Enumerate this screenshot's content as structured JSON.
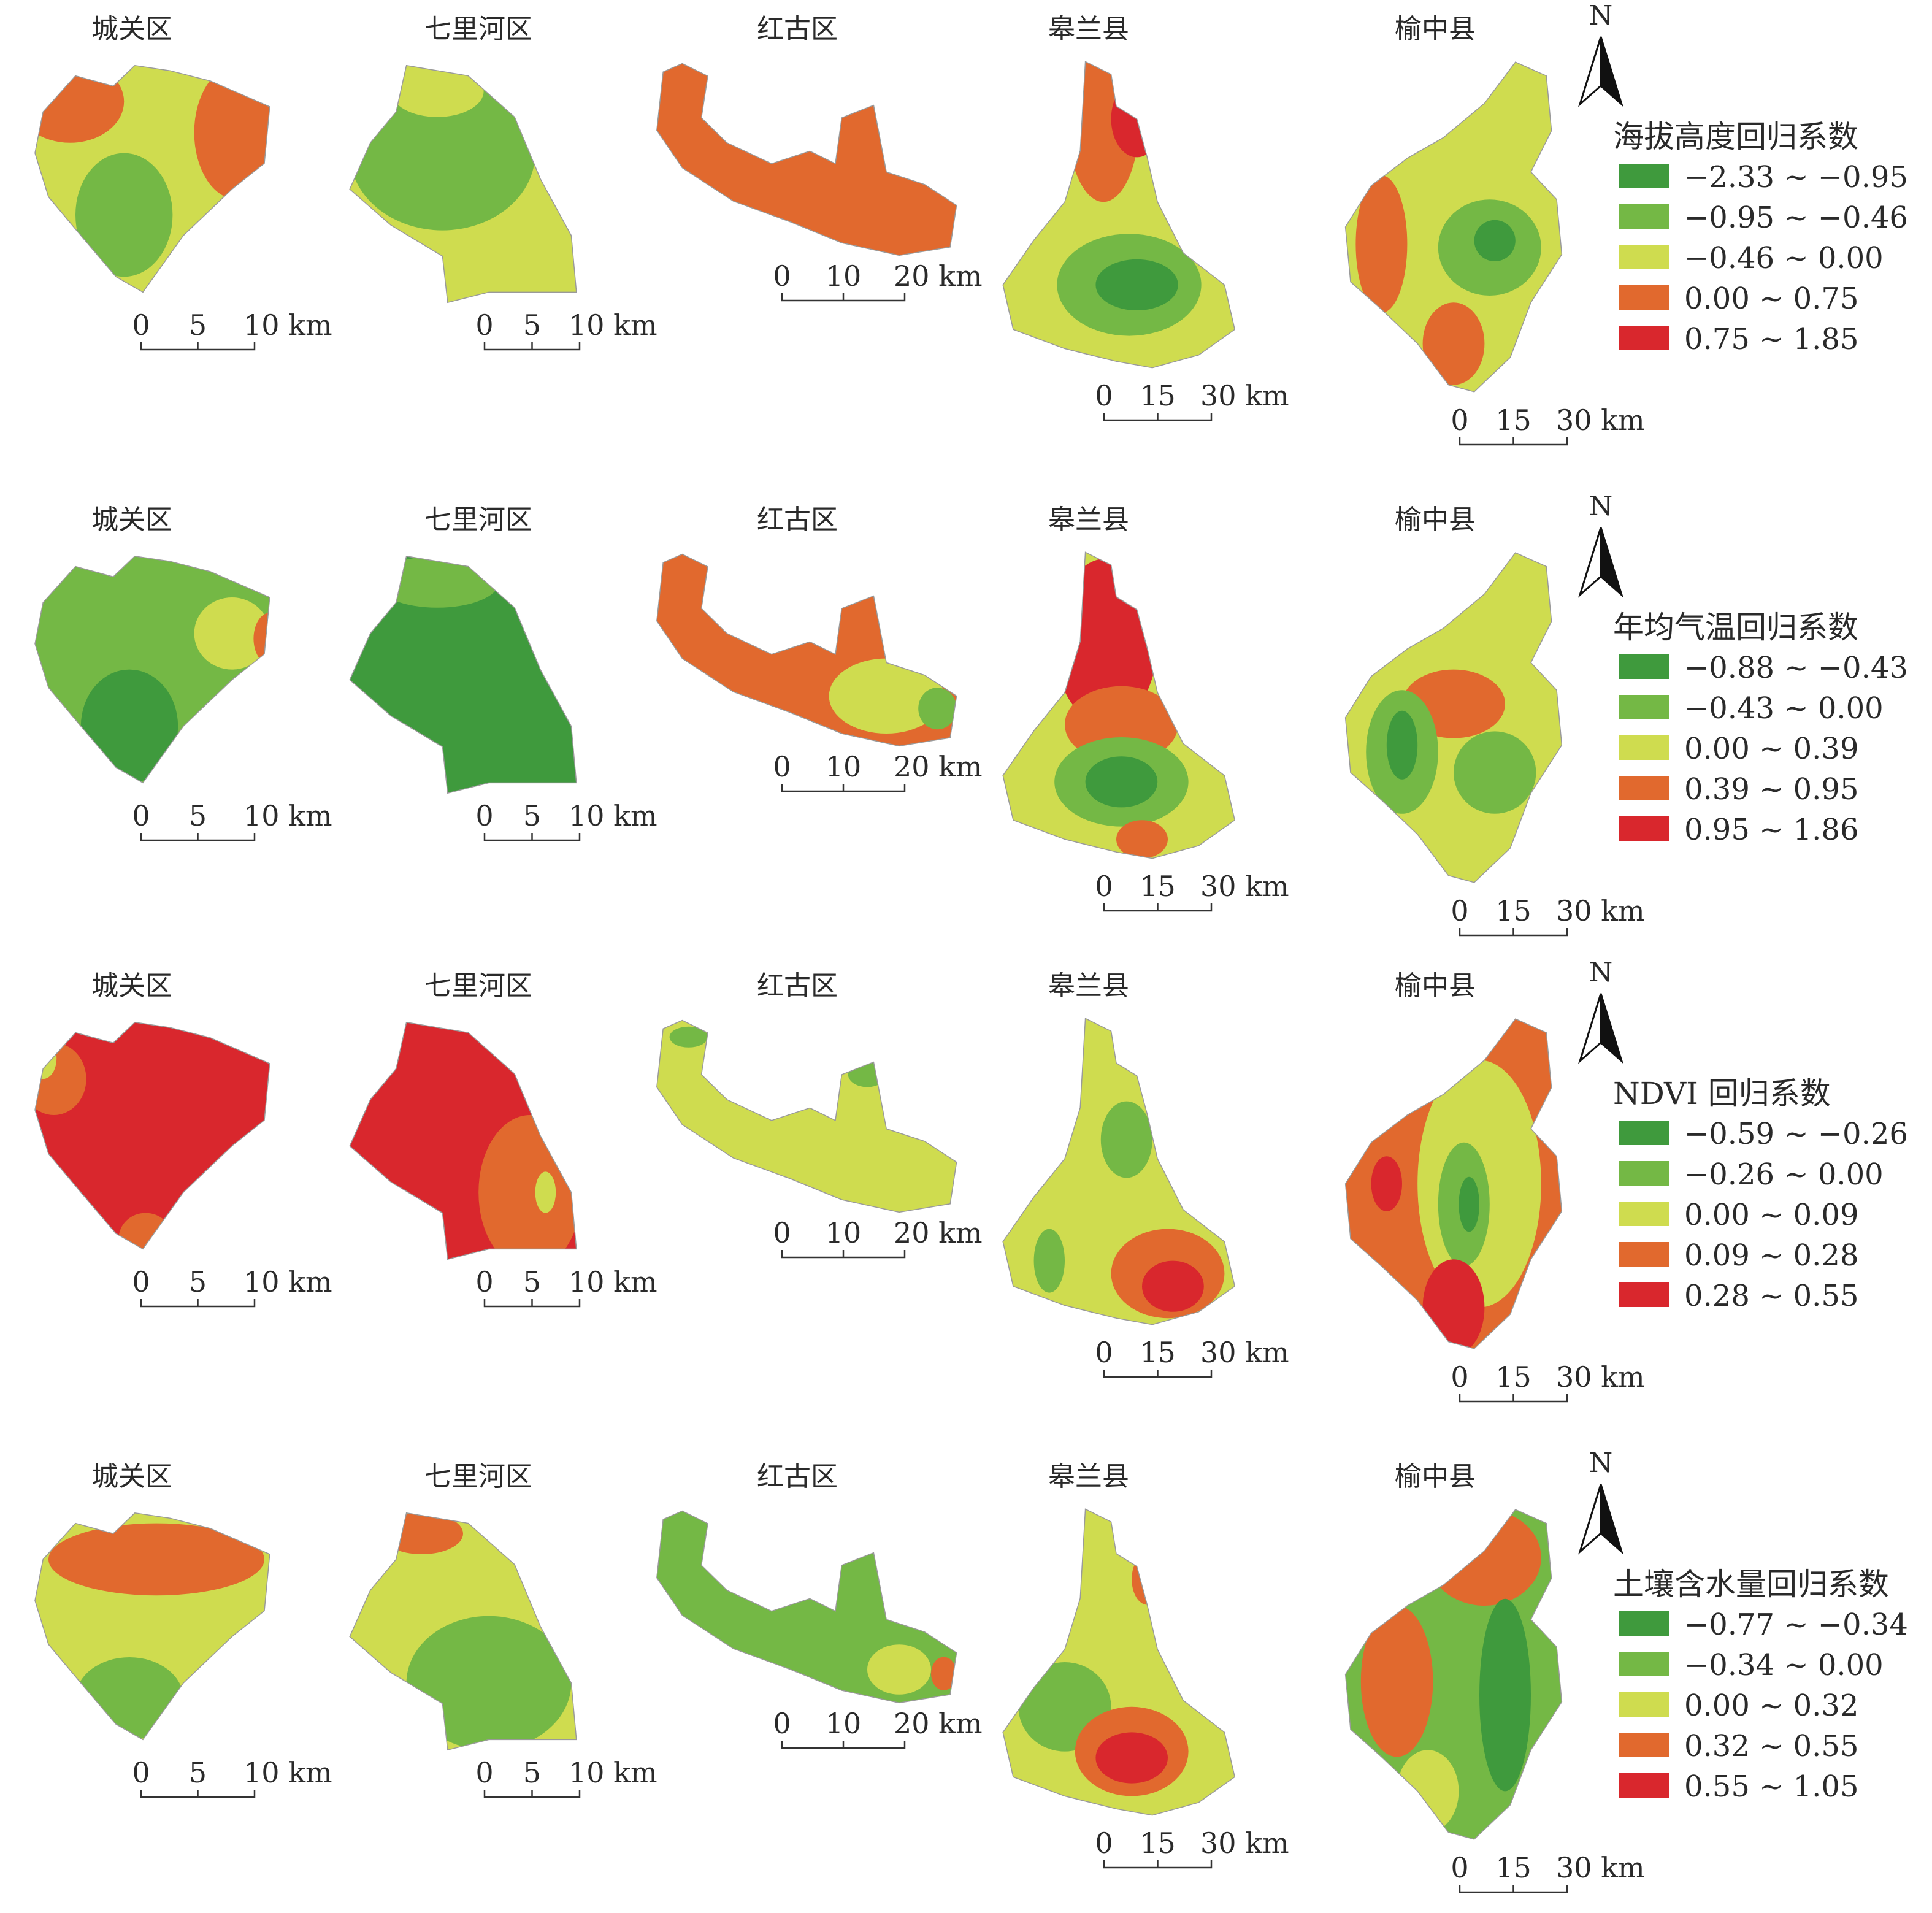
{
  "colors": {
    "dark_green": "#3f9a3d",
    "green": "#74b845",
    "yellow_green": "#cfdc4f",
    "orange": "#e1692e",
    "red": "#d9272d"
  },
  "north_label": "N",
  "district_names": [
    "城关区",
    "七里河区",
    "红古区",
    "皋兰县",
    "榆中县"
  ],
  "rows": [
    {
      "legend_title": "海拔高度回归系数",
      "classes": [
        "−2.33 ~ −0.95",
        "−0.95 ~ −0.46",
        "−0.46 ~ 0.00",
        "0.00 ~ 0.75",
        "0.75 ~ 1.85"
      ],
      "scales": [
        {
          "labels": [
            "0",
            "5",
            "10 km"
          ]
        },
        {
          "labels": [
            "0",
            "5",
            "10 km"
          ]
        },
        {
          "labels": [
            "0",
            "10",
            "20 km"
          ]
        },
        {
          "labels": [
            "0",
            "15",
            "30 km"
          ]
        },
        {
          "labels": [
            "0",
            "15",
            "30 km"
          ]
        }
      ]
    },
    {
      "legend_title": "年均气温回归系数",
      "classes": [
        "−0.88 ~ −0.43",
        "−0.43 ~ 0.00",
        "0.00 ~ 0.39",
        "0.39 ~ 0.95",
        "0.95 ~ 1.86"
      ],
      "scales": [
        {
          "labels": [
            "0",
            "5",
            "10 km"
          ]
        },
        {
          "labels": [
            "0",
            "5",
            "10 km"
          ]
        },
        {
          "labels": [
            "0",
            "10",
            "20 km"
          ]
        },
        {
          "labels": [
            "0",
            "15",
            "30 km"
          ]
        },
        {
          "labels": [
            "0",
            "15",
            "30 km"
          ]
        }
      ]
    },
    {
      "legend_title": "NDVI 回归系数",
      "classes": [
        "−0.59 ~ −0.26",
        "−0.26 ~ 0.00",
        "0.00 ~ 0.09",
        "0.09 ~ 0.28",
        "0.28 ~ 0.55"
      ],
      "scales": [
        {
          "labels": [
            "0",
            "5",
            "10 km"
          ]
        },
        {
          "labels": [
            "0",
            "5",
            "10 km"
          ]
        },
        {
          "labels": [
            "0",
            "10",
            "20 km"
          ]
        },
        {
          "labels": [
            "0",
            "15",
            "30 km"
          ]
        },
        {
          "labels": [
            "0",
            "15",
            "30 km"
          ]
        }
      ]
    },
    {
      "legend_title": "土壤含水量回归系数",
      "classes": [
        "−0.77 ~ −0.34",
        "−0.34 ~ 0.00",
        "0.00 ~ 0.32",
        "0.32 ~ 0.55",
        "0.55 ~ 1.05"
      ],
      "scales": [
        {
          "labels": [
            "0",
            "5",
            "10 km"
          ]
        },
        {
          "labels": [
            "0",
            "5",
            "10 km"
          ]
        },
        {
          "labels": [
            "0",
            "10",
            "20 km"
          ]
        },
        {
          "labels": [
            "0",
            "15",
            "30 km"
          ]
        },
        {
          "labels": [
            "0",
            "15",
            "30 km"
          ]
        }
      ]
    }
  ]
}
